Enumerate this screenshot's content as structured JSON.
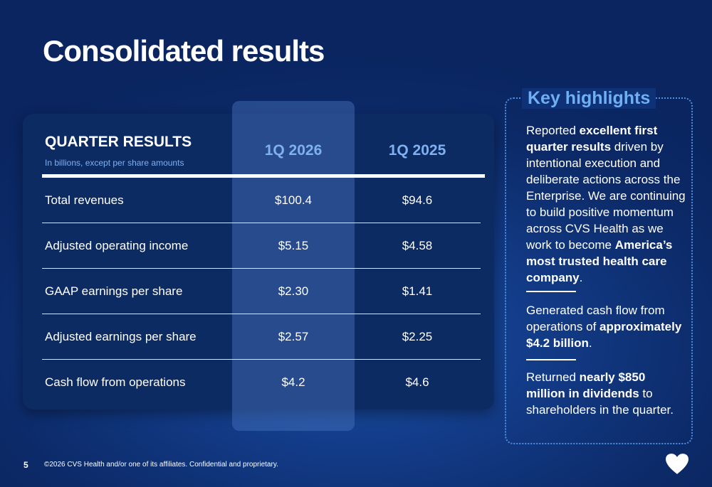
{
  "page": {
    "title": "Consolidated results",
    "page_number": "5",
    "footer": "©2026 CVS Health and/or one of its affiliates. Confidential and proprietary."
  },
  "table": {
    "header_title": "QUARTER RESULTS",
    "header_subtitle": "In billions, except per share amounts",
    "columns": [
      "1Q 2026",
      "1Q 2025"
    ],
    "rows": [
      {
        "label": "Total revenues",
        "q1_2026": "$100.4",
        "q1_2025": "$94.6"
      },
      {
        "label": "Adjusted operating income",
        "q1_2026": "$5.15",
        "q1_2025": "$4.58"
      },
      {
        "label": "GAAP earnings per share",
        "q1_2026": "$2.30",
        "q1_2025": "$1.41"
      },
      {
        "label": "Adjusted earnings per share",
        "q1_2026": "$2.57",
        "q1_2025": "$2.25"
      },
      {
        "label": "Cash flow from operations",
        "q1_2026": "$4.2",
        "q1_2025": "$4.6"
      }
    ]
  },
  "highlights": {
    "title": "Key highlights",
    "p1": {
      "t1": "Reported ",
      "b1": "excellent first quarter results",
      "t2": " driven by intentional execution and deliberate actions across the Enterprise. We are continuing to build positive momentum across CVS Health as we work to become ",
      "b2": "America’s most trusted health care company",
      "t3": "."
    },
    "p2": {
      "t1": "Generated cash flow from operations of ",
      "b1": "approximately $4.2 billion",
      "t2": "."
    },
    "p3": {
      "t1": "Returned ",
      "b1": "nearly $850 million in dividends",
      "t2": " to shareholders in the quarter."
    }
  },
  "icons": {
    "logo": "heart-icon",
    "logo_color": "#ffffff"
  }
}
